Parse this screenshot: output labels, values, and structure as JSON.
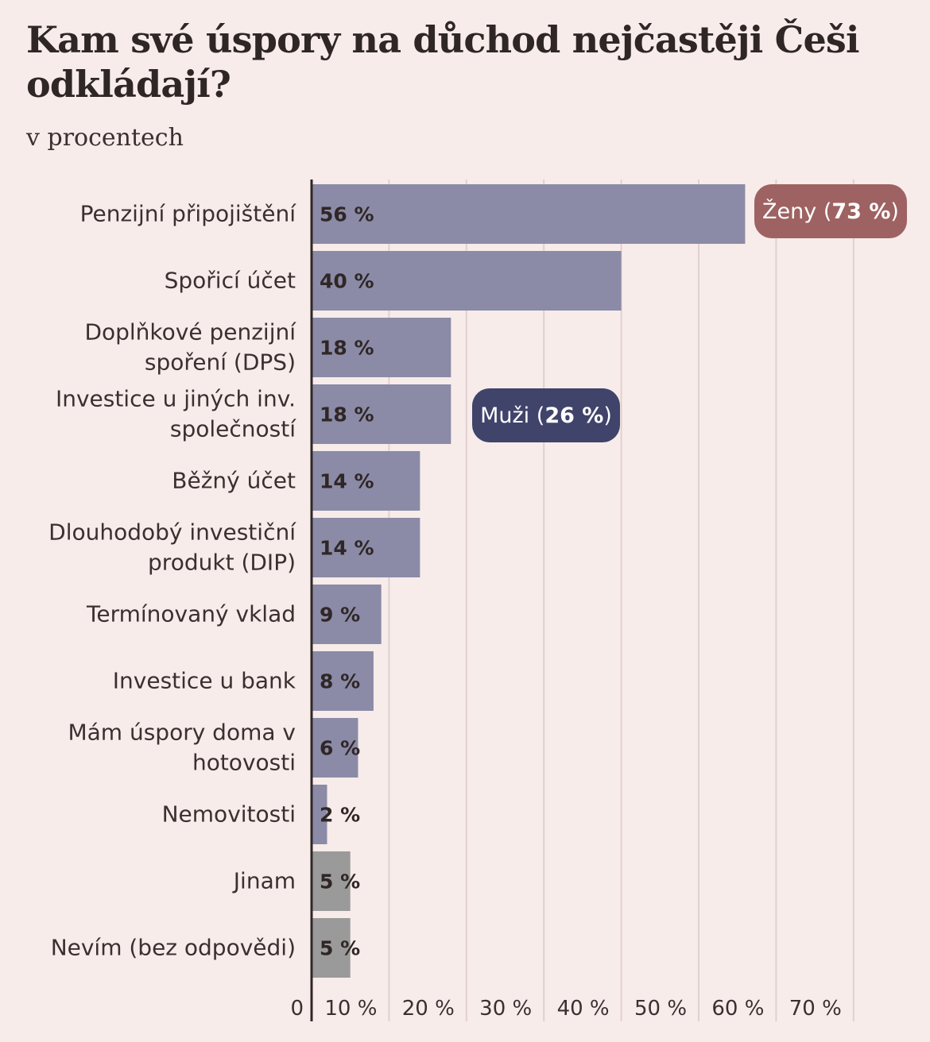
{
  "title": "Kam své úspory na důchod nejčastěji Češi odkládají?",
  "subtitle": "v procentech",
  "annotations": {
    "women": {
      "name": "Ženy",
      "value": "73 %"
    },
    "men": {
      "name": "Muži",
      "value": "26 %"
    }
  },
  "colors": {
    "background": "#f7ecea",
    "bar": "#8b8ba7",
    "bar_other": "#9a9a9a",
    "women": "#9e6262",
    "men": "#40436a"
  },
  "chart_data": {
    "type": "bar",
    "orientation": "horizontal",
    "title": "Kam své úspory na důchod nejčastěji Češi odkládají?",
    "subtitle": "v procentech",
    "categories": [
      [
        "Penzijní připojištění"
      ],
      [
        "Spořicí účet"
      ],
      [
        "Doplňkové penzijní",
        "spoření (DPS)"
      ],
      [
        "Investice u jiných inv.",
        "společností"
      ],
      [
        "Běžný účet"
      ],
      [
        "Dlouhodobý investiční",
        "produkt (DIP)"
      ],
      [
        "Termínovaný vklad"
      ],
      [
        "Investice u bank"
      ],
      [
        "Mám úspory doma v",
        "hotovosti"
      ],
      [
        "Nemovitosti"
      ],
      [
        "Jinam"
      ],
      [
        "Nevím (bez odpovědi)"
      ]
    ],
    "values": [
      56,
      40,
      18,
      18,
      14,
      14,
      9,
      8,
      6,
      2,
      5,
      5
    ],
    "value_labels": [
      "56 %",
      "40 %",
      "18 %",
      "18 %",
      "14 %",
      "14 %",
      "9 %",
      "8 %",
      "6 %",
      "2 %",
      "5 %",
      "5 %"
    ],
    "muted": [
      false,
      false,
      false,
      false,
      false,
      false,
      false,
      false,
      false,
      false,
      true,
      true
    ],
    "xlim": [
      0,
      70
    ],
    "xticks": [
      0,
      10,
      20,
      30,
      40,
      50,
      60,
      70
    ],
    "xtick_labels": [
      "0",
      "10 %",
      "20 %",
      "30 %",
      "40 %",
      "50 %",
      "60 %",
      "70 %"
    ],
    "grid": true,
    "legend": "none"
  }
}
